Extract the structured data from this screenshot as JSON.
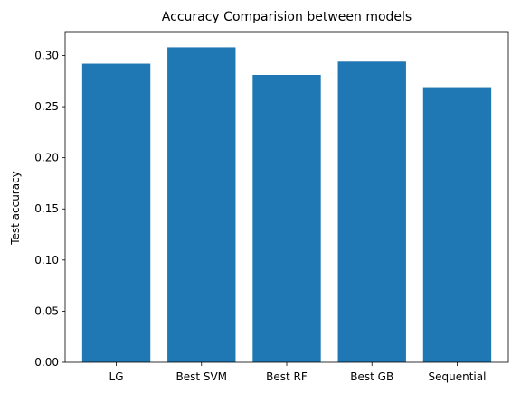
{
  "chart_data": {
    "type": "bar",
    "title": "Accuracy Comparision between models",
    "xlabel": "",
    "ylabel": "Test accuracy",
    "categories": [
      "LG",
      "Best SVM",
      "Best RF",
      "Best GB",
      "Sequential"
    ],
    "values": [
      0.292,
      0.308,
      0.281,
      0.294,
      0.269
    ],
    "ylim": [
      0,
      0.3234
    ],
    "yticks": [
      0.0,
      0.05,
      0.1,
      0.15,
      0.2,
      0.25,
      0.3
    ],
    "ytick_labels": [
      "0.00",
      "0.05",
      "0.10",
      "0.15",
      "0.20",
      "0.25",
      "0.30"
    ],
    "bar_color": "#1f77b4",
    "grid": false,
    "legend": "none"
  }
}
